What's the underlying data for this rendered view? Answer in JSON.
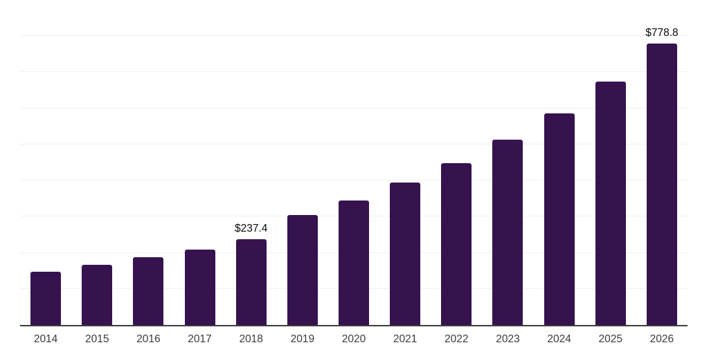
{
  "chart_data": {
    "type": "bar",
    "categories": [
      "2014",
      "2015",
      "2016",
      "2017",
      "2018",
      "2019",
      "2020",
      "2021",
      "2022",
      "2023",
      "2024",
      "2025",
      "2026"
    ],
    "values": [
      147,
      166,
      187,
      209,
      237.4,
      304,
      344,
      395,
      449,
      513,
      586,
      674,
      778.8
    ],
    "bar_labels": [
      "",
      "",
      "",
      "",
      "$237.4",
      "",
      "",
      "",
      "",
      "",
      "",
      "",
      "$778.8"
    ],
    "title": "",
    "xlabel": "",
    "ylabel": "",
    "ylim": [
      0,
      900
    ],
    "grid": true,
    "gridline_step": 100,
    "y_tick_labels_visible": false,
    "legend_position": "none",
    "colors": {
      "bar": "#36124E",
      "gridline": "#F0F0F0",
      "axis_line": "#3C3C3C",
      "tick_label": "#3A3A3A",
      "data_label": "#0A0A0A",
      "background": "#FFFFFF"
    }
  }
}
